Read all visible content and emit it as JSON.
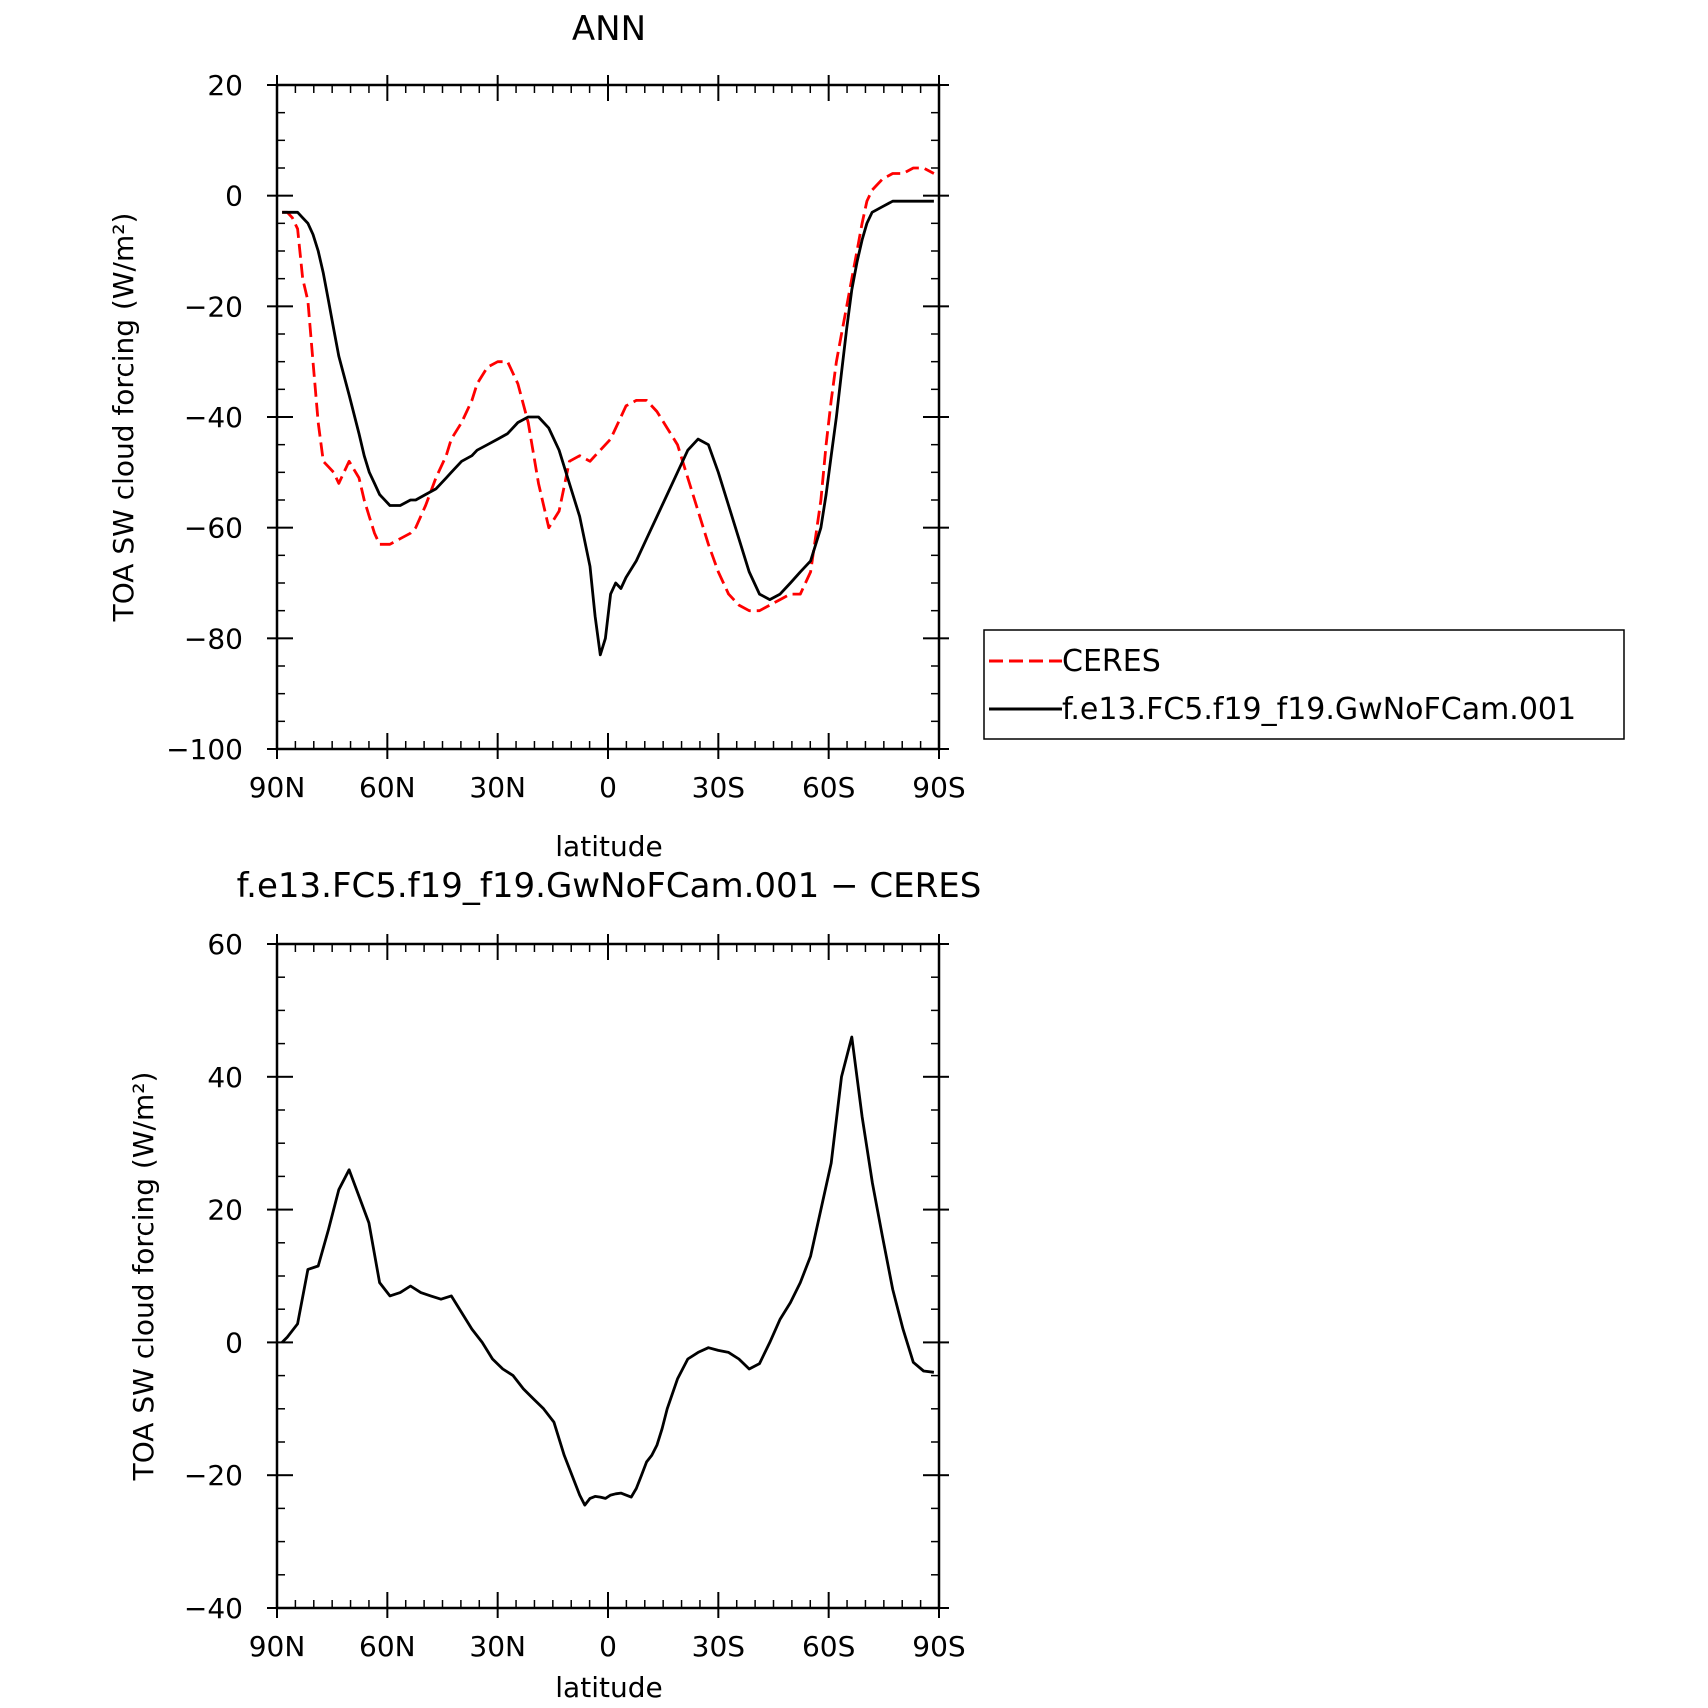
{
  "chart_data": [
    {
      "type": "line",
      "title": "ANN",
      "xlabel": "latitude",
      "ylabel": "TOA SW cloud forcing (W/m²)",
      "xlim": [
        90,
        -90
      ],
      "ylim": [
        -100,
        20
      ],
      "xticks": [
        90,
        60,
        30,
        0,
        -30,
        -60,
        -90
      ],
      "xticklabels": [
        "90N",
        "60N",
        "30N",
        "0",
        "30S",
        "60S",
        "90S"
      ],
      "yticks": [
        20,
        0,
        -20,
        -40,
        -60,
        -80,
        -100
      ],
      "yticklabels": [
        "20",
        "0",
        "−20",
        "−40",
        "−60",
        "−80",
        "−100"
      ],
      "legend_position": "right",
      "series": [
        {
          "name": "CERES",
          "color": "#ff0000",
          "dash": "dashed",
          "x": [
            88.6,
            87.2,
            85.8,
            84.4,
            83.0,
            81.6,
            80.2,
            78.8,
            77.4,
            76.0,
            74.6,
            73.2,
            70.4,
            67.7,
            66.3,
            64.9,
            63.5,
            62.1,
            59.3,
            56.5,
            53.7,
            52.3,
            49.6,
            46.8,
            44.0,
            42.6,
            39.8,
            37.0,
            35.6,
            32.8,
            30.0,
            27.3,
            24.5,
            21.7,
            18.9,
            16.1,
            13.3,
            10.5,
            7.7,
            4.9,
            3.5,
            2.1,
            0.7,
            -0.7,
            -2.1,
            -3.5,
            -4.9,
            -7.7,
            -10.5,
            -13.3,
            -16.1,
            -18.9,
            -21.7,
            -24.5,
            -27.3,
            -30.0,
            -32.8,
            -35.6,
            -38.4,
            -41.2,
            -44.0,
            -46.8,
            -49.6,
            -52.3,
            -55.1,
            -57.9,
            -59.3,
            -60.7,
            -62.1,
            -63.5,
            -64.9,
            -66.3,
            -67.7,
            -69.1,
            -70.4,
            -71.8,
            -74.6,
            -77.4,
            -80.2,
            -83.0,
            -85.8,
            -88.6
          ],
          "y": [
            -3,
            -3,
            -4,
            -6,
            -15,
            -19,
            -30,
            -41,
            -48,
            -49,
            -50,
            -52,
            -48,
            -51,
            -55,
            -58,
            -61,
            -63,
            -63,
            -62,
            -61,
            -60,
            -56,
            -51,
            -47,
            -44,
            -41,
            -37,
            -34,
            -31,
            -30,
            -30,
            -34,
            -41,
            -52,
            -60,
            -57,
            -48,
            -47,
            -48,
            -47,
            -46,
            -45,
            -44,
            -42,
            -40,
            -38,
            -37,
            -37,
            -39,
            -42,
            -45,
            -51,
            -57,
            -63,
            -68,
            -72,
            -74,
            -75,
            -75,
            -74,
            -73,
            -72,
            -72,
            -68,
            -55,
            -45,
            -37,
            -30,
            -25,
            -20,
            -15,
            -10,
            -5,
            -1,
            1,
            3,
            4,
            4,
            5,
            5,
            4
          ]
        },
        {
          "name": "f.e13.FC5.f19_f19.GwNoFCam.001",
          "color": "#000000",
          "dash": "solid",
          "x": [
            88.6,
            87.2,
            85.8,
            84.4,
            83.0,
            81.6,
            80.2,
            78.8,
            77.4,
            76.0,
            74.6,
            73.2,
            70.4,
            67.7,
            66.3,
            64.9,
            63.5,
            62.1,
            59.3,
            56.5,
            53.7,
            52.3,
            49.6,
            46.8,
            44.0,
            42.6,
            39.8,
            37.0,
            35.6,
            32.8,
            30.0,
            27.3,
            24.5,
            21.7,
            18.9,
            16.1,
            13.3,
            10.5,
            7.7,
            4.9,
            3.5,
            2.1,
            0.7,
            -0.7,
            -2.1,
            -3.5,
            -4.9,
            -7.7,
            -10.5,
            -13.3,
            -16.1,
            -18.9,
            -21.7,
            -24.5,
            -27.3,
            -30.0,
            -32.8,
            -35.6,
            -38.4,
            -41.2,
            -44.0,
            -46.8,
            -49.6,
            -52.3,
            -55.1,
            -57.9,
            -59.3,
            -60.7,
            -62.1,
            -63.5,
            -64.9,
            -66.3,
            -67.7,
            -69.1,
            -70.4,
            -71.8,
            -74.6,
            -77.4,
            -80.2,
            -83.0,
            -85.8,
            -88.6
          ],
          "y": [
            -3,
            -3,
            -3,
            -3,
            -4,
            -5,
            -7,
            -10,
            -14,
            -19,
            -24,
            -29,
            -36,
            -43,
            -47,
            -50,
            -52,
            -54,
            -56,
            -56,
            -55,
            -55,
            -54,
            -53,
            -51,
            -50,
            -48,
            -47,
            -46,
            -45,
            -44,
            -43,
            -41,
            -40,
            -40,
            -42,
            -46,
            -52,
            -58,
            -67,
            -76,
            -83,
            -80,
            -72,
            -70,
            -71,
            -69,
            -66,
            -62,
            -58,
            -54,
            -50,
            -46,
            -44,
            -45,
            -50,
            -56,
            -62,
            -68,
            -72,
            -73,
            -72,
            -70,
            -68,
            -66,
            -60,
            -54,
            -47,
            -40,
            -32,
            -24,
            -17,
            -12,
            -8,
            -5,
            -3,
            -2,
            -1,
            -1,
            -1,
            -1,
            -1
          ]
        }
      ]
    },
    {
      "type": "line",
      "title": "f.e13.FC5.f19_f19.GwNoFCam.001 − CERES",
      "xlabel": "latitude",
      "ylabel": "TOA SW cloud forcing (W/m²)",
      "xlim": [
        90,
        -90
      ],
      "ylim": [
        -40,
        60
      ],
      "xticks": [
        90,
        60,
        30,
        0,
        -30,
        -60,
        -90
      ],
      "xticklabels": [
        "90N",
        "60N",
        "30N",
        "0",
        "30S",
        "60S",
        "90S"
      ],
      "yticks": [
        60,
        40,
        20,
        0,
        -20,
        -40
      ],
      "yticklabels": [
        "60",
        "40",
        "20",
        "0",
        "−20",
        "−40"
      ],
      "series": [
        {
          "name": "",
          "color": "#000000",
          "dash": "solid",
          "x": [
            88.6,
            87.2,
            84.4,
            81.6,
            78.8,
            76.0,
            73.2,
            70.4,
            67.7,
            65.0,
            62.1,
            59.3,
            56.5,
            53.7,
            50.9,
            48.2,
            45.4,
            42.6,
            39.8,
            37.0,
            34.2,
            31.4,
            28.6,
            25.8,
            23.0,
            20.3,
            17.5,
            14.7,
            11.9,
            9.1,
            7.7,
            6.3,
            4.9,
            3.5,
            2.1,
            0.7,
            -0.7,
            -2.1,
            -3.5,
            -4.9,
            -6.3,
            -7.7,
            -9.1,
            -10.5,
            -11.9,
            -13.3,
            -14.7,
            -16.1,
            -18.9,
            -21.7,
            -24.5,
            -27.3,
            -30.0,
            -32.8,
            -35.6,
            -38.4,
            -41.2,
            -44.0,
            -46.8,
            -49.6,
            -52.3,
            -55.1,
            -57.9,
            -60.7,
            -63.5,
            -66.3,
            -69.1,
            -71.9,
            -74.6,
            -77.4,
            -80.2,
            -83.0,
            -85.8,
            -88.6
          ],
          "y": [
            0,
            0.8,
            2.8,
            11,
            11.5,
            17,
            23,
            26,
            22,
            18,
            9,
            7,
            7.5,
            8.5,
            7.5,
            7,
            6.5,
            7,
            4.5,
            2,
            0,
            -2.5,
            -4,
            -5,
            -7,
            -8.5,
            -10,
            -12,
            -17,
            -21,
            -23,
            -24.5,
            -23.5,
            -23.2,
            -23.3,
            -23.5,
            -23,
            -22.8,
            -22.7,
            -23,
            -23.3,
            -22,
            -20,
            -18,
            -17,
            -15.5,
            -13,
            -10,
            -5.5,
            -2.5,
            -1.5,
            -0.8,
            -1.2,
            -1.5,
            -2.5,
            -4,
            -3.2,
            0,
            3.5,
            6,
            9,
            13,
            20,
            27,
            40,
            46,
            34,
            24,
            16,
            8,
            2,
            -3,
            -4.3,
            -4.5
          ]
        }
      ]
    }
  ]
}
